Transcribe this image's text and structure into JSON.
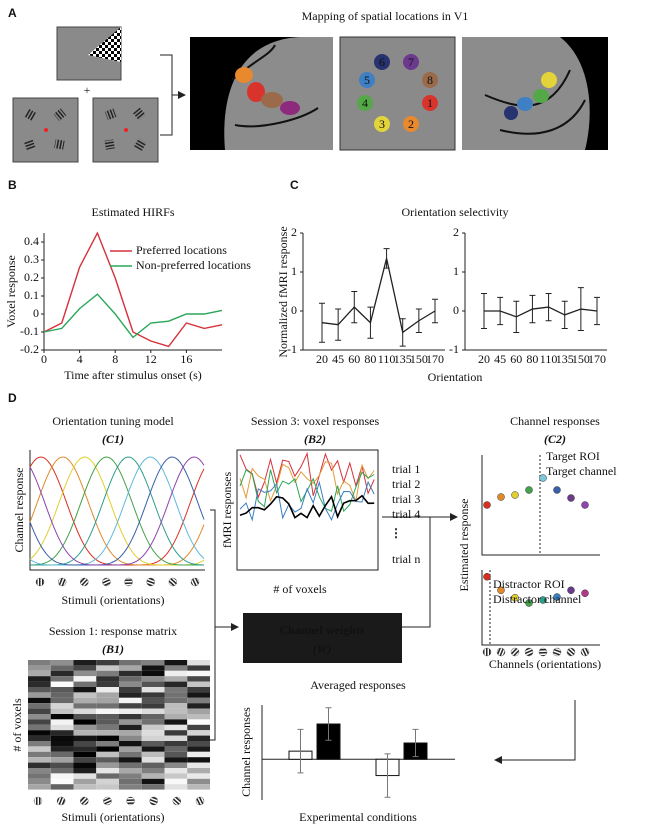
{
  "panels": [
    "A",
    "B",
    "C",
    "D"
  ],
  "a": {
    "title": "Mapping of spatial locations in V1",
    "plus": "+",
    "locations": [
      {
        "label": "1",
        "color": "#d9342b"
      },
      {
        "label": "2",
        "color": "#e8892e"
      },
      {
        "label": "3",
        "color": "#e3d43a"
      },
      {
        "label": "4",
        "color": "#55a847"
      },
      {
        "label": "5",
        "color": "#3f7fc4"
      },
      {
        "label": "6",
        "color": "#26336e"
      },
      {
        "label": "7",
        "color": "#6b3a8c"
      },
      {
        "label": "8",
        "color": "#9a6a4a"
      }
    ]
  },
  "hirf": {
    "type": "line",
    "title": "Estimated HIRFs",
    "y_label": "Voxel response",
    "x_label": "Time after stimulus onset (s)",
    "x": [
      0,
      2,
      4,
      6,
      8,
      10,
      12,
      14,
      16,
      18,
      20
    ],
    "xlim": [
      0,
      20
    ],
    "xticks": [
      0,
      4,
      8,
      12,
      16
    ],
    "ylim": [
      -0.2,
      0.45
    ],
    "yticks": [
      -0.2,
      -0.1,
      0,
      0.1,
      0.2,
      0.3,
      0.4
    ],
    "legend": "upper right",
    "series": [
      {
        "name": "Preferred locations",
        "color": "#d6313a",
        "values": [
          -0.1,
          -0.05,
          0.26,
          0.45,
          0.2,
          -0.1,
          -0.15,
          -0.18,
          -0.05,
          -0.08,
          -0.06
        ]
      },
      {
        "name": "Non-preferred locations",
        "color": "#2aa65a",
        "values": [
          -0.1,
          -0.08,
          0.03,
          0.11,
          0.0,
          -0.13,
          -0.05,
          -0.04,
          0.0,
          0.0,
          0.02
        ]
      }
    ]
  },
  "orientation": {
    "type": "errorline",
    "title": "Orientation selectivity",
    "y_label": "Normalized fMRI response",
    "x_label": "Orientation",
    "categories": [
      "20",
      "45",
      "60",
      "80",
      "110",
      "135",
      "150",
      "170"
    ],
    "ylim": [
      -1,
      2
    ],
    "yticks": [
      -1,
      0,
      1,
      2
    ],
    "color": "#222222",
    "series": [
      {
        "values": [
          -0.3,
          -0.35,
          0.1,
          -0.3,
          1.35,
          -0.55,
          -0.25,
          0.0
        ],
        "errors": [
          0.5,
          0.4,
          0.4,
          0.4,
          0.25,
          0.35,
          0.3,
          0.3
        ]
      },
      {
        "values": [
          0.0,
          0.0,
          -0.15,
          0.05,
          0.1,
          -0.1,
          0.05,
          0.0
        ],
        "errors": [
          0.45,
          0.35,
          0.4,
          0.35,
          0.35,
          0.35,
          0.55,
          0.35
        ]
      }
    ]
  },
  "d": {
    "tuning_title": "Orientation tuning model",
    "tuning_tag": "(C1)",
    "tuning_y": "Channel response",
    "tuning_x": "Stimuli (orientations)",
    "channel_colors": [
      "#d7301f",
      "#e08a2c",
      "#e0cf30",
      "#43a24a",
      "#2e9e8a",
      "#5fb8d9",
      "#3a5fa8",
      "#8e44ad"
    ],
    "matrix_title": "Session 1: response matrix",
    "matrix_tag": "(B1)",
    "matrix_y": "# of voxels",
    "matrix_x": "Stimuli (orientations)",
    "voxel_title": "Session 3: voxel responses",
    "voxel_tag": "(B2)",
    "voxel_y": "fMRI responses",
    "voxel_x": "# of voxels",
    "trials": [
      {
        "label": "trial 1",
        "color": "#d6313a"
      },
      {
        "label": "trial 2",
        "color": "#e39a3a"
      },
      {
        "label": "trial 3",
        "color": "#2aa65a"
      },
      {
        "label": "trial 4",
        "color": "#3a7fc0"
      }
    ],
    "trial_more": "⋮",
    "trial_n": "trial n",
    "weights_title": "Channel weights",
    "weights_tag": "(W)",
    "channel_title": "Channel responses",
    "channel_tag": "(C2)",
    "channel_y": "Estimated response",
    "channel_x": "Channels (orientations)",
    "target": {
      "lines": [
        "Target ROI",
        "Target channel"
      ],
      "ylim": [
        0,
        1
      ],
      "values": [
        0.5,
        0.58,
        0.6,
        0.65,
        0.77,
        0.65,
        0.57,
        0.5
      ],
      "colors": [
        "#d7301f",
        "#e08a2c",
        "#e0cf30",
        "#43a24a",
        "#7ec8dc",
        "#3a5fa8",
        "#6b3a8c",
        "#8e44ad"
      ]
    },
    "distractor": {
      "lines": [
        "Distractor ROI",
        "Distractor channel"
      ],
      "ylim": [
        0,
        1
      ],
      "values": [
        0.91,
        0.73,
        0.63,
        0.56,
        0.6,
        0.64,
        0.73,
        0.69
      ],
      "colors": [
        "#d7301f",
        "#e08a2c",
        "#e0cf30",
        "#43a24a",
        "#2e9e8a",
        "#3a7fc0",
        "#6b3a8c",
        "#b03a8a"
      ]
    },
    "averaged": {
      "type": "bar",
      "title": "Averaged responses",
      "y_label": "Channel responses",
      "x_label": "Experimental conditions",
      "ylim": [
        -1.5,
        2
      ],
      "values": [
        0.3,
        1.3,
        -0.6,
        0.6
      ],
      "errors": [
        0.8,
        0.6,
        0.8,
        0.5
      ],
      "colors": [
        "#ffffff",
        "#000000",
        "#ffffff",
        "#000000"
      ]
    }
  }
}
